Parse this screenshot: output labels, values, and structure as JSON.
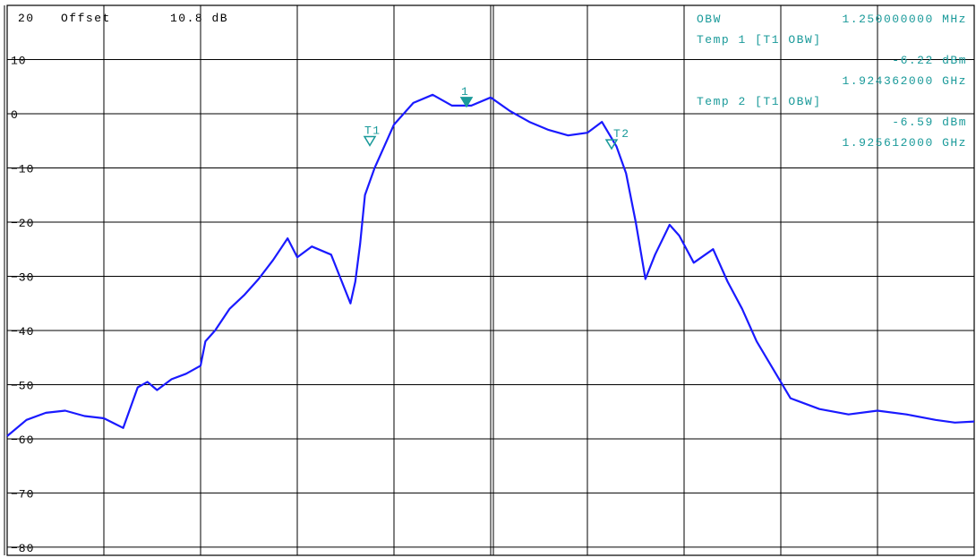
{
  "header": {
    "ref_level": "20",
    "offset_label": "Offset",
    "offset_value": "10.8 dB"
  },
  "readout": {
    "obw_label": "OBW",
    "obw_value": "1.250000000 MHz",
    "temp1_label": "Temp 1 [T1 OBW]",
    "temp1_level": "-6.22 dBm",
    "temp1_freq": "1.924362000 GHz",
    "temp2_label": "Temp 2 [T1 OBW]",
    "temp2_level": "-6.59 dBm",
    "temp2_freq": "1.925612000 GHz"
  },
  "colors": {
    "trace": "#1a1aff",
    "marker": "#1a9a9a",
    "grid": "#000000"
  },
  "chart_data": {
    "type": "line",
    "yticks": [
      "10",
      "0",
      "-10",
      "-20",
      "-30",
      "-40",
      "-50",
      "-60",
      "-70",
      "-80"
    ],
    "ylim": [
      -81.5,
      20
    ],
    "xlim": [
      0,
      10
    ],
    "grid": true,
    "markers": [
      {
        "label": "1",
        "x": 4.75,
        "y": 2.0
      },
      {
        "label": "T1",
        "x": 3.75,
        "y": -5.2
      },
      {
        "label": "T2",
        "x": 6.25,
        "y": -5.8
      }
    ],
    "series": [
      {
        "x": [
          0,
          0.2,
          0.4,
          0.6,
          0.8,
          1.0,
          1.2,
          1.35,
          1.45,
          1.55,
          1.7,
          1.85,
          2.0,
          2.05,
          2.15,
          2.3,
          2.45,
          2.6,
          2.75,
          2.9,
          3.0,
          3.15,
          3.35,
          3.45,
          3.55,
          3.6,
          3.65,
          3.7,
          3.8,
          3.9,
          4.0,
          4.2,
          4.4,
          4.6,
          4.8,
          5.0,
          5.2,
          5.4,
          5.6,
          5.8,
          6.0,
          6.15,
          6.3,
          6.4,
          6.5,
          6.6,
          6.7,
          6.85,
          6.95,
          7.1,
          7.3,
          7.45,
          7.6,
          7.75,
          7.9,
          8.1,
          8.4,
          8.7,
          9.0,
          9.3,
          9.6,
          9.8,
          10.0
        ],
        "y": [
          -59.5,
          -56.5,
          -55.2,
          -54.8,
          -55.8,
          -56.2,
          -58.0,
          -50.5,
          -49.5,
          -51.0,
          -49.0,
          -48.0,
          -46.5,
          -42.0,
          -40.0,
          -36.0,
          -33.5,
          -30.5,
          -27.0,
          -23.0,
          -26.5,
          -24.5,
          -26.0,
          -30.5,
          -35.0,
          -31.0,
          -24.0,
          -15.0,
          -10.0,
          -6.0,
          -2.0,
          2.0,
          3.5,
          1.5,
          1.5,
          3.0,
          0.5,
          -1.5,
          -3.0,
          -4.0,
          -3.5,
          -1.5,
          -6.0,
          -11.0,
          -20.0,
          -30.5,
          -26.0,
          -20.5,
          -22.5,
          -27.5,
          -25.0,
          -31.0,
          -36.0,
          -42.0,
          -46.5,
          -52.5,
          -54.5,
          -55.5,
          -54.8,
          -55.5,
          -56.5,
          -57.0,
          -56.8
        ]
      }
    ]
  }
}
